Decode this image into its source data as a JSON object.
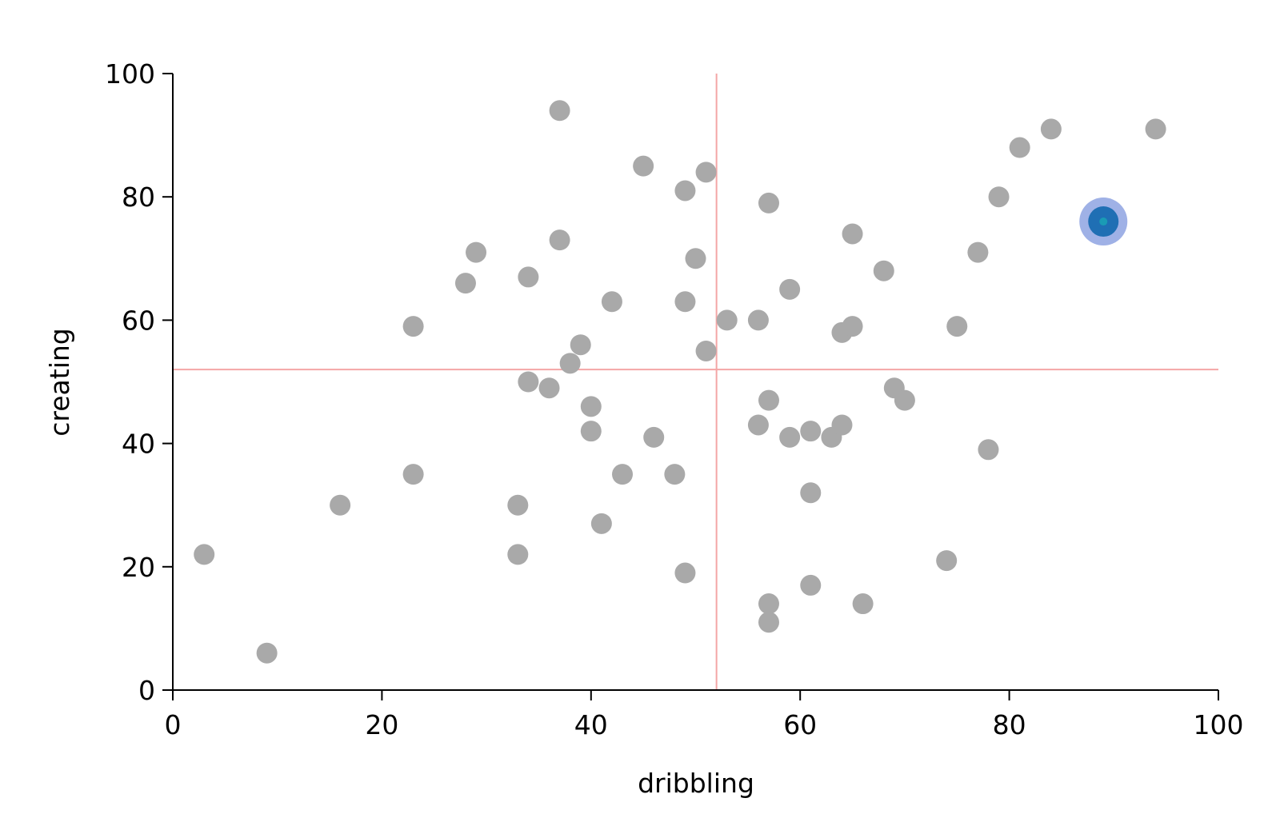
{
  "chart_data": {
    "type": "scatter",
    "xlabel": "dribbling",
    "ylabel": "creating",
    "xlim": [
      0,
      100
    ],
    "ylim": [
      0,
      100
    ],
    "x_ticks": [
      "0",
      "20",
      "40",
      "60",
      "80",
      "100"
    ],
    "y_ticks": [
      "0",
      "20",
      "40",
      "60",
      "80",
      "100"
    ],
    "grid": false,
    "reference_lines": {
      "x": 52,
      "y": 52,
      "color": "#f4a6a6"
    },
    "point_color": "#a9a9a9",
    "points": [
      {
        "x": 3,
        "y": 22
      },
      {
        "x": 9,
        "y": 6
      },
      {
        "x": 16,
        "y": 30
      },
      {
        "x": 23,
        "y": 59
      },
      {
        "x": 23,
        "y": 35
      },
      {
        "x": 28,
        "y": 66
      },
      {
        "x": 29,
        "y": 71
      },
      {
        "x": 33,
        "y": 30
      },
      {
        "x": 33,
        "y": 22
      },
      {
        "x": 34,
        "y": 67
      },
      {
        "x": 34,
        "y": 50
      },
      {
        "x": 36,
        "y": 49
      },
      {
        "x": 37,
        "y": 94
      },
      {
        "x": 37,
        "y": 73
      },
      {
        "x": 38,
        "y": 53
      },
      {
        "x": 39,
        "y": 56
      },
      {
        "x": 40,
        "y": 46
      },
      {
        "x": 40,
        "y": 42
      },
      {
        "x": 41,
        "y": 27
      },
      {
        "x": 42,
        "y": 63
      },
      {
        "x": 43,
        "y": 35
      },
      {
        "x": 45,
        "y": 85
      },
      {
        "x": 46,
        "y": 41
      },
      {
        "x": 48,
        "y": 35
      },
      {
        "x": 49,
        "y": 81
      },
      {
        "x": 49,
        "y": 63
      },
      {
        "x": 49,
        "y": 19
      },
      {
        "x": 50,
        "y": 70
      },
      {
        "x": 51,
        "y": 84
      },
      {
        "x": 51,
        "y": 55
      },
      {
        "x": 53,
        "y": 60
      },
      {
        "x": 56,
        "y": 60
      },
      {
        "x": 56,
        "y": 43
      },
      {
        "x": 57,
        "y": 79
      },
      {
        "x": 57,
        "y": 47
      },
      {
        "x": 57,
        "y": 14
      },
      {
        "x": 57,
        "y": 11
      },
      {
        "x": 59,
        "y": 65
      },
      {
        "x": 59,
        "y": 41
      },
      {
        "x": 61,
        "y": 42
      },
      {
        "x": 61,
        "y": 32
      },
      {
        "x": 61,
        "y": 17
      },
      {
        "x": 63,
        "y": 41
      },
      {
        "x": 64,
        "y": 58
      },
      {
        "x": 64,
        "y": 43
      },
      {
        "x": 65,
        "y": 74
      },
      {
        "x": 65,
        "y": 59
      },
      {
        "x": 66,
        "y": 14
      },
      {
        "x": 68,
        "y": 68
      },
      {
        "x": 69,
        "y": 49
      },
      {
        "x": 70,
        "y": 47
      },
      {
        "x": 74,
        "y": 21
      },
      {
        "x": 75,
        "y": 59
      },
      {
        "x": 77,
        "y": 71
      },
      {
        "x": 78,
        "y": 39
      },
      {
        "x": 79,
        "y": 80
      },
      {
        "x": 81,
        "y": 88
      },
      {
        "x": 84,
        "y": 91
      },
      {
        "x": 94,
        "y": 91
      }
    ],
    "highlighted_point": {
      "x": 89,
      "y": 76,
      "fill": "#1f6fb4",
      "halo": "#9fb1e6",
      "center": "#1a9bb5"
    }
  }
}
